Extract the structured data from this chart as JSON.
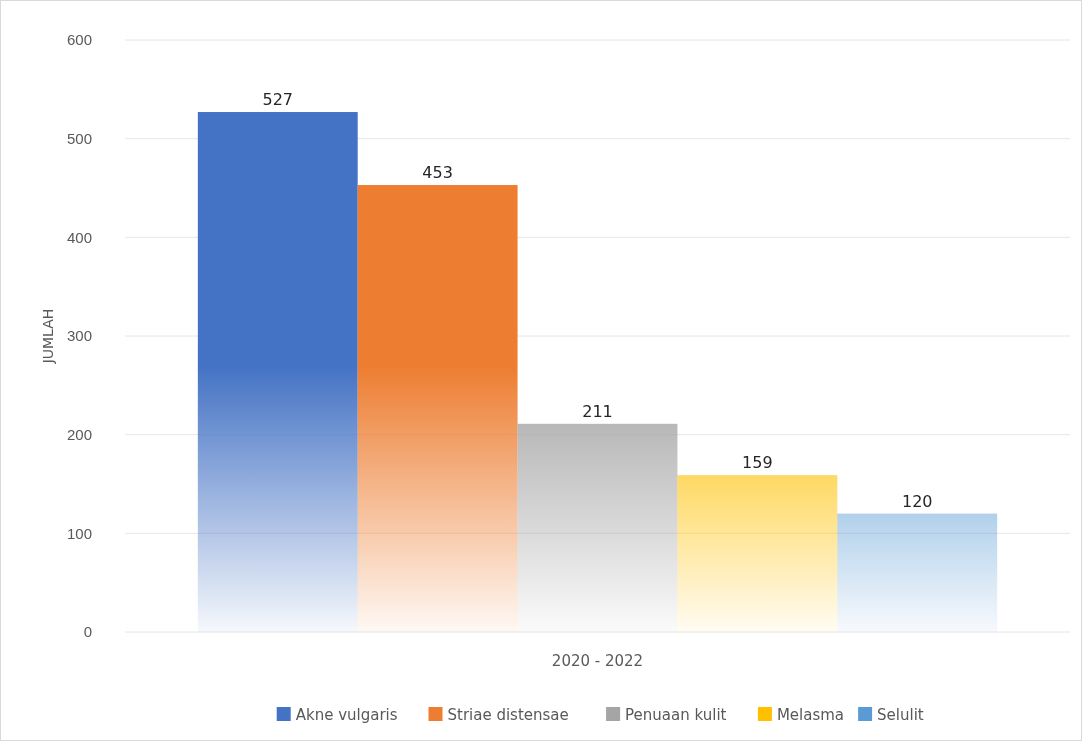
{
  "chart_data": {
    "type": "bar",
    "xlabel": "2020 - 2022",
    "ylabel": "JUMLAH",
    "categories": [
      null
    ],
    "series": [
      {
        "name": "Akne vulgaris",
        "color": "#4472c4",
        "values": [
          527
        ]
      },
      {
        "name": "Striae distensae",
        "color": "#ed7d31",
        "values": [
          453
        ]
      },
      {
        "name": "Penuaan kulit",
        "color": "#a5a5a5",
        "values": [
          211
        ]
      },
      {
        "name": "Melasma",
        "color": "#ffc000",
        "values": [
          159
        ]
      },
      {
        "name": "Selulit",
        "color": "#5b9bd5",
        "values": [
          120
        ]
      }
    ],
    "ylim": [
      0,
      600
    ],
    "yticks": [
      0,
      100,
      200,
      300,
      400,
      500,
      600
    ],
    "grid": "y",
    "legend": "bottom",
    "data_labels": true
  }
}
